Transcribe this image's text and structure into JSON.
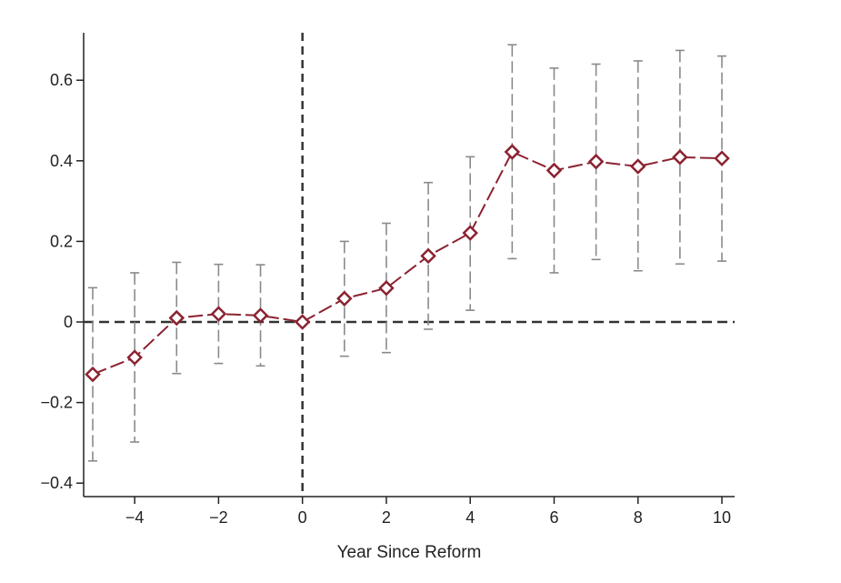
{
  "chart_data": {
    "type": "line",
    "title": "",
    "xlabel": "Year Since Reform",
    "ylabel": "",
    "xlim": [
      -5.2,
      10.2
    ],
    "ylim": [
      -0.43,
      0.72
    ],
    "x_ticks": [
      -4,
      -2,
      0,
      2,
      4,
      6,
      8,
      10
    ],
    "x_tick_labels": [
      "−4",
      "−2",
      "0",
      "2",
      "4",
      "6",
      "8",
      "10"
    ],
    "y_ticks": [
      -0.4,
      -0.2,
      0,
      0.2,
      0.4,
      0.6
    ],
    "y_tick_labels": [
      "−0.4",
      "−0.2",
      "0",
      "0.2",
      "0.4",
      "0.6"
    ],
    "reference_lines": {
      "x": 0,
      "y": 0,
      "style": "dashed"
    },
    "grid": false,
    "series": [
      {
        "x": [
          -5,
          -4,
          -3,
          -2,
          -1,
          0,
          1,
          2,
          3,
          4,
          5,
          6,
          7,
          8,
          9,
          10
        ],
        "values": [
          -0.13,
          -0.088,
          0.01,
          0.02,
          0.016,
          0.0,
          0.058,
          0.084,
          0.164,
          0.221,
          0.422,
          0.376,
          0.398,
          0.386,
          0.409,
          0.406
        ],
        "ci_lower": [
          -0.345,
          -0.298,
          -0.128,
          -0.103,
          -0.109,
          0.0,
          -0.085,
          -0.076,
          -0.018,
          0.029,
          0.157,
          0.122,
          0.155,
          0.127,
          0.144,
          0.151
        ],
        "ci_upper": [
          0.085,
          0.122,
          0.148,
          0.143,
          0.142,
          0.0,
          0.2,
          0.245,
          0.346,
          0.41,
          0.688,
          0.63,
          0.64,
          0.648,
          0.674,
          0.66
        ],
        "line_style": "dashed",
        "marker": "hollow-diamond",
        "color": "#8b2331",
        "ci_color": "#8a8a8a"
      }
    ]
  }
}
